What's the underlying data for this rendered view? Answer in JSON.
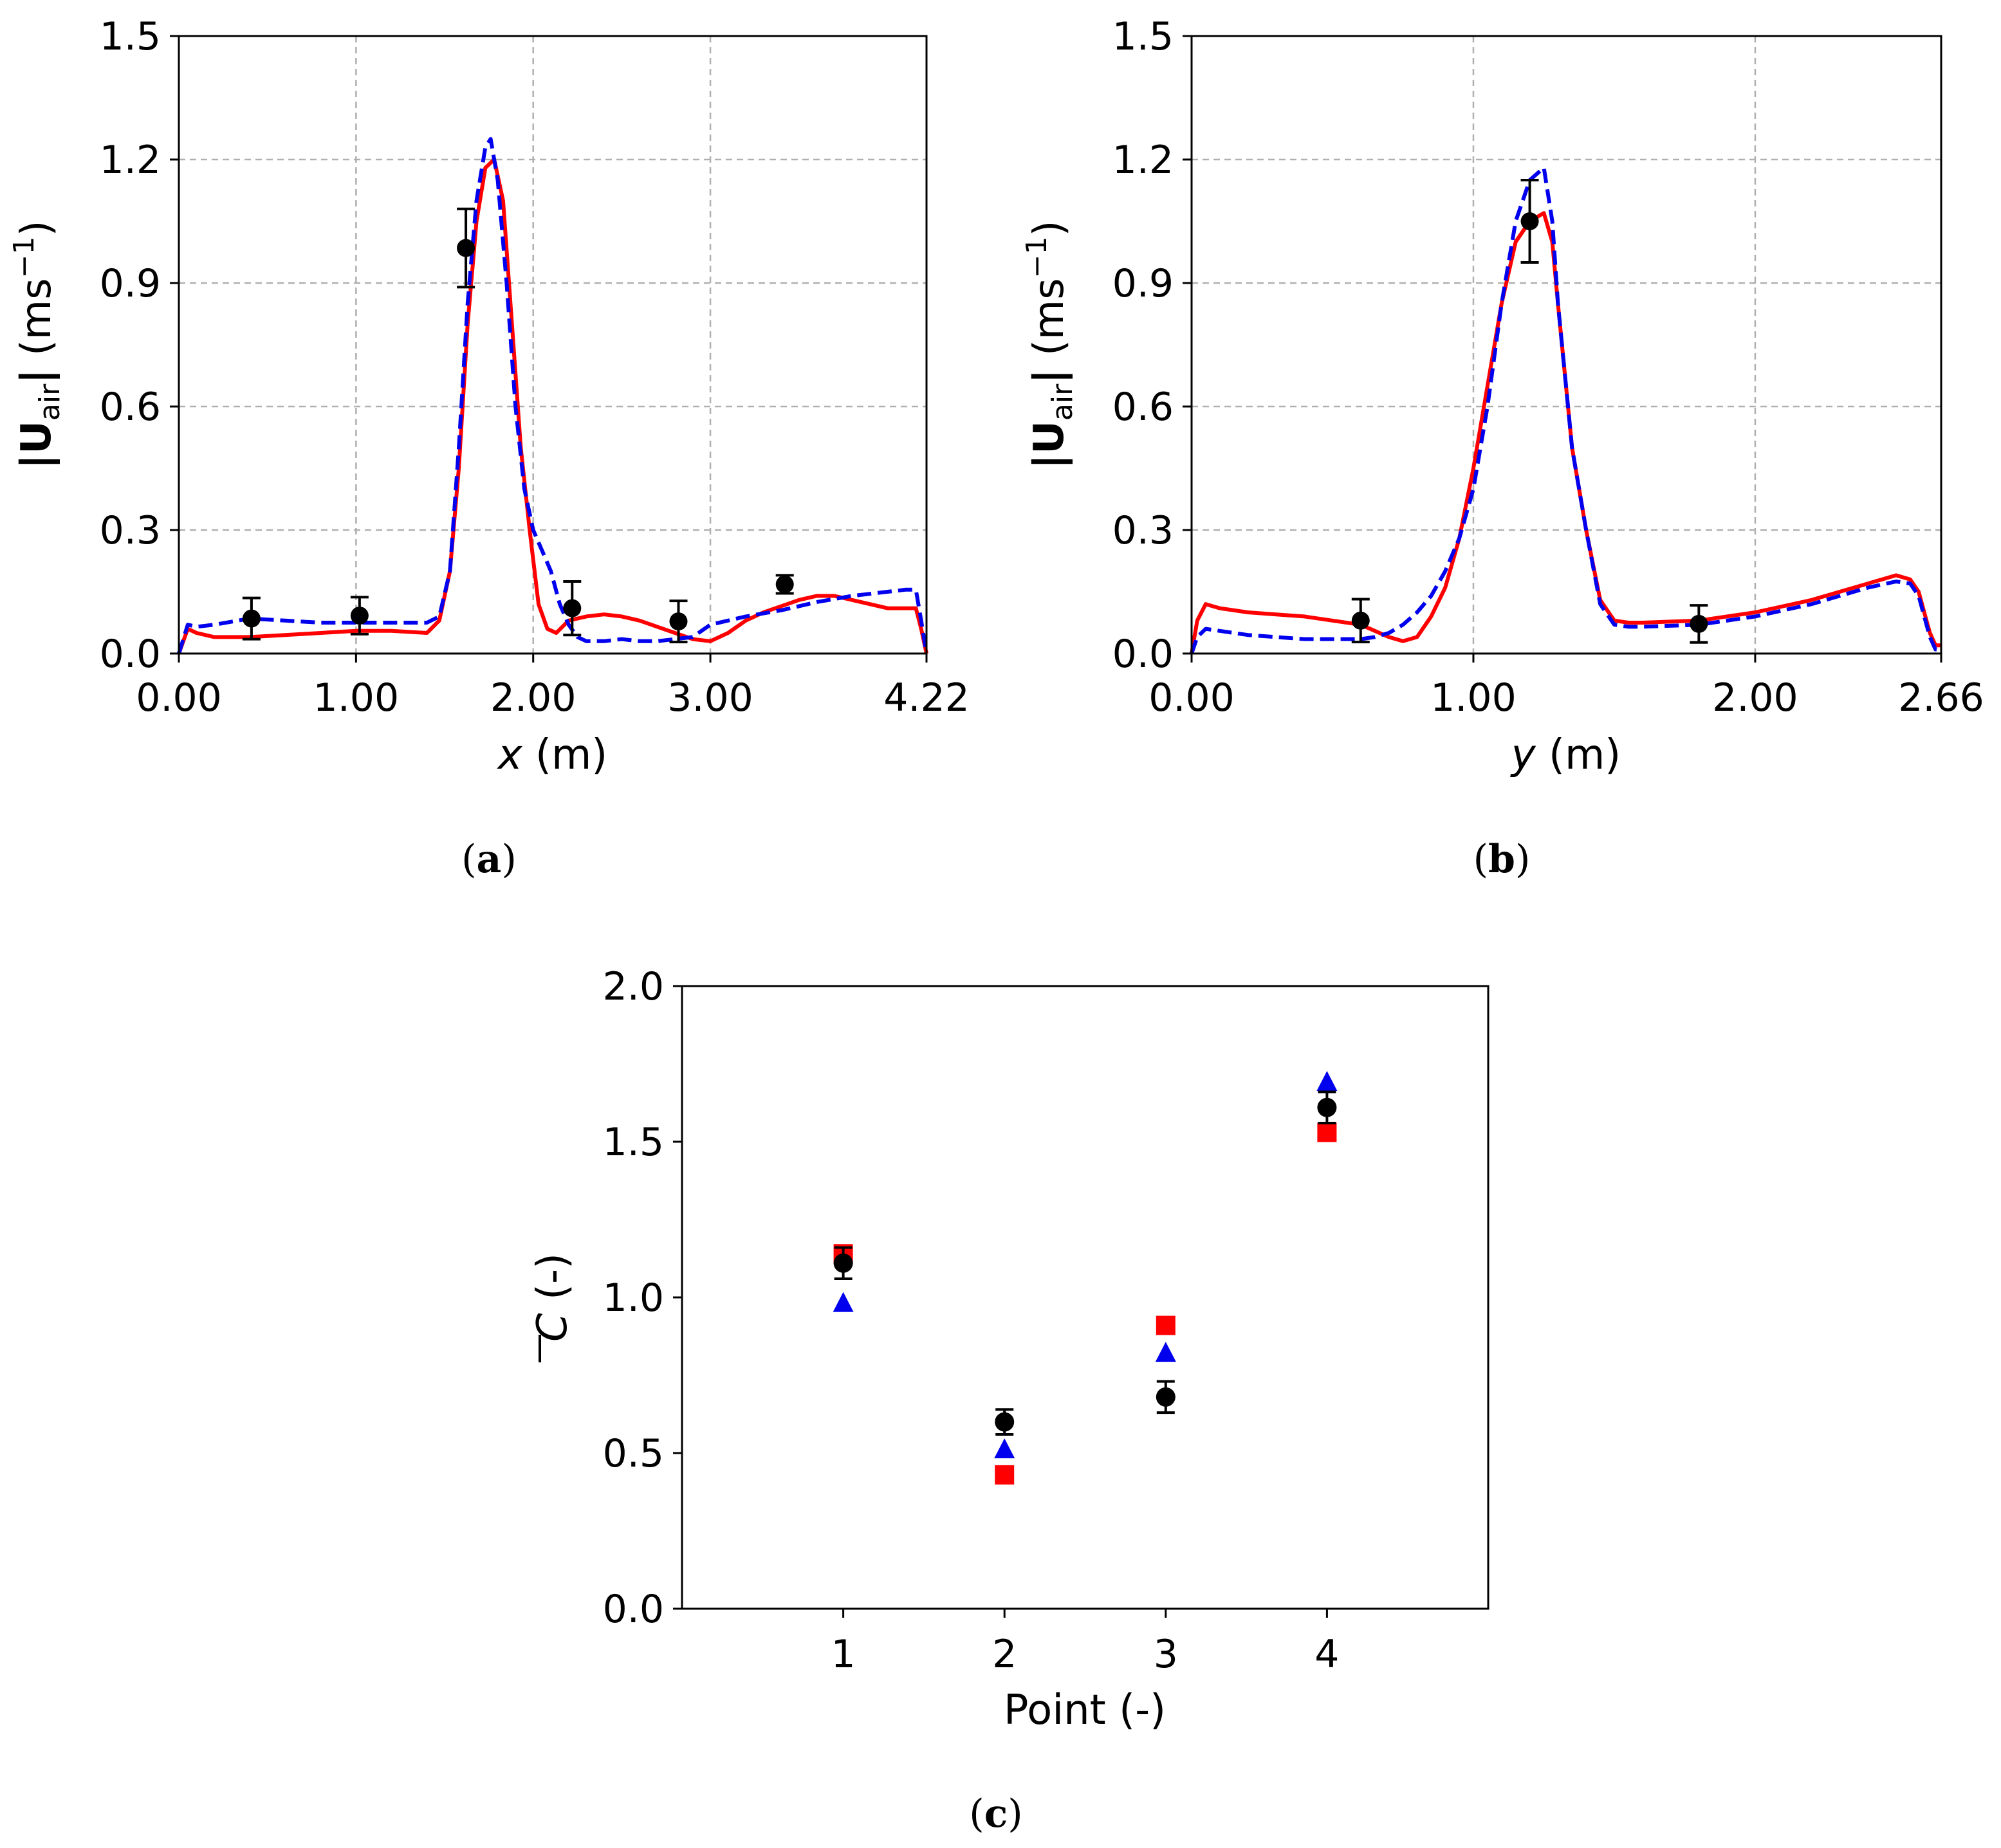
{
  "chart_data": [
    {
      "panel": "a",
      "type": "line",
      "caption": {
        "open": "(",
        "letter": "a",
        "close": ")"
      },
      "xlabel": {
        "var": "x",
        "unit": " (m)"
      },
      "ylabel": {
        "bar1": "|",
        "symbol": "U",
        "sub": "air",
        "bar2": "|",
        "unit_pre": " (ms",
        "unit_sup": "−1",
        "unit_post": ")"
      },
      "xlim": [
        0,
        4.22
      ],
      "ylim": [
        0,
        1.5
      ],
      "xticks": [
        {
          "v": 0,
          "label": "0.00"
        },
        {
          "v": 1,
          "label": "1.00"
        },
        {
          "v": 2,
          "label": "2.00"
        },
        {
          "v": 3,
          "label": "3.00"
        },
        {
          "v": 4.22,
          "label": "4.22"
        }
      ],
      "yticks": [
        {
          "v": 0,
          "label": "0.0"
        },
        {
          "v": 0.3,
          "label": "0.3"
        },
        {
          "v": 0.6,
          "label": "0.6"
        },
        {
          "v": 0.9,
          "label": "0.9"
        },
        {
          "v": 1.2,
          "label": "1.2"
        },
        {
          "v": 1.5,
          "label": "1.5"
        }
      ],
      "grid": true,
      "series": [
        {
          "name": "simulation-solid",
          "style": "solid",
          "color": "#ff0000",
          "x": [
            0,
            0.05,
            0.1,
            0.2,
            0.4,
            0.6,
            0.8,
            1.0,
            1.2,
            1.4,
            1.47,
            1.53,
            1.58,
            1.63,
            1.68,
            1.73,
            1.78,
            1.83,
            1.88,
            1.93,
            1.98,
            2.03,
            2.08,
            2.13,
            2.2,
            2.3,
            2.4,
            2.5,
            2.6,
            2.7,
            2.8,
            2.9,
            3.0,
            3.1,
            3.2,
            3.3,
            3.4,
            3.5,
            3.6,
            3.7,
            3.8,
            3.9,
            4.0,
            4.1,
            4.16,
            4.19,
            4.22
          ],
          "y": [
            0,
            0.06,
            0.05,
            0.04,
            0.04,
            0.045,
            0.05,
            0.055,
            0.055,
            0.05,
            0.08,
            0.2,
            0.45,
            0.8,
            1.05,
            1.18,
            1.2,
            1.1,
            0.8,
            0.5,
            0.3,
            0.12,
            0.06,
            0.05,
            0.08,
            0.09,
            0.095,
            0.09,
            0.08,
            0.065,
            0.05,
            0.035,
            0.03,
            0.05,
            0.08,
            0.1,
            0.115,
            0.13,
            0.14,
            0.14,
            0.13,
            0.12,
            0.11,
            0.11,
            0.11,
            0.06,
            0
          ]
        },
        {
          "name": "simulation-dashed",
          "style": "dashed",
          "color": "#0000ee",
          "x": [
            0,
            0.05,
            0.1,
            0.2,
            0.4,
            0.6,
            0.8,
            1.0,
            1.2,
            1.4,
            1.47,
            1.53,
            1.58,
            1.63,
            1.68,
            1.73,
            1.76,
            1.8,
            1.85,
            1.9,
            1.95,
            2.0,
            2.05,
            2.1,
            2.15,
            2.2,
            2.25,
            2.3,
            2.4,
            2.5,
            2.6,
            2.7,
            2.8,
            2.9,
            3.0,
            3.2,
            3.4,
            3.6,
            3.8,
            4.0,
            4.1,
            4.16,
            4.19,
            4.22
          ],
          "y": [
            0,
            0.07,
            0.065,
            0.07,
            0.085,
            0.08,
            0.075,
            0.075,
            0.075,
            0.075,
            0.09,
            0.2,
            0.5,
            0.85,
            1.1,
            1.23,
            1.25,
            1.15,
            0.9,
            0.6,
            0.4,
            0.3,
            0.25,
            0.2,
            0.12,
            0.07,
            0.04,
            0.03,
            0.03,
            0.035,
            0.03,
            0.03,
            0.035,
            0.04,
            0.07,
            0.09,
            0.105,
            0.125,
            0.14,
            0.15,
            0.155,
            0.155,
            0.08,
            0
          ]
        }
      ],
      "markers": [
        {
          "x": 0.41,
          "y": 0.085,
          "err": 0.05
        },
        {
          "x": 1.02,
          "y": 0.092,
          "err": 0.045
        },
        {
          "x": 1.62,
          "y": 0.985,
          "err": 0.095
        },
        {
          "x": 2.22,
          "y": 0.11,
          "err": 0.065
        },
        {
          "x": 2.82,
          "y": 0.078,
          "err": 0.05
        },
        {
          "x": 3.42,
          "y": 0.168,
          "err": 0.022
        }
      ]
    },
    {
      "panel": "b",
      "type": "line",
      "caption": {
        "open": "(",
        "letter": "b",
        "close": ")"
      },
      "xlabel": {
        "var": "y",
        "unit": " (m)"
      },
      "ylabel": {
        "bar1": "|",
        "symbol": "U",
        "sub": "air",
        "bar2": "|",
        "unit_pre": " (ms",
        "unit_sup": "−1",
        "unit_post": ")"
      },
      "xlim": [
        0,
        2.66
      ],
      "ylim": [
        0,
        1.5
      ],
      "xticks": [
        {
          "v": 0,
          "label": "0.00"
        },
        {
          "v": 1,
          "label": "1.00"
        },
        {
          "v": 2,
          "label": "2.00"
        },
        {
          "v": 2.66,
          "label": "2.66"
        }
      ],
      "yticks": [
        {
          "v": 0,
          "label": "0.0"
        },
        {
          "v": 0.3,
          "label": "0.3"
        },
        {
          "v": 0.6,
          "label": "0.6"
        },
        {
          "v": 0.9,
          "label": "0.9"
        },
        {
          "v": 1.2,
          "label": "1.2"
        },
        {
          "v": 1.5,
          "label": "1.5"
        }
      ],
      "grid": true,
      "series": [
        {
          "name": "simulation-solid",
          "style": "solid",
          "color": "#ff0000",
          "x": [
            0,
            0.02,
            0.05,
            0.1,
            0.2,
            0.3,
            0.4,
            0.5,
            0.6,
            0.65,
            0.7,
            0.75,
            0.8,
            0.85,
            0.9,
            0.95,
            1.0,
            1.05,
            1.1,
            1.15,
            1.2,
            1.25,
            1.28,
            1.3,
            1.35,
            1.4,
            1.45,
            1.5,
            1.55,
            1.6,
            1.8,
            2.0,
            2.2,
            2.4,
            2.5,
            2.55,
            2.58,
            2.6,
            2.62,
            2.64,
            2.66
          ],
          "y": [
            0,
            0.08,
            0.12,
            0.11,
            0.1,
            0.095,
            0.09,
            0.08,
            0.07,
            0.055,
            0.04,
            0.03,
            0.04,
            0.09,
            0.16,
            0.28,
            0.45,
            0.65,
            0.85,
            1.0,
            1.05,
            1.07,
            1.0,
            0.85,
            0.5,
            0.3,
            0.13,
            0.08,
            0.075,
            0.075,
            0.08,
            0.1,
            0.13,
            0.17,
            0.19,
            0.18,
            0.15,
            0.1,
            0.05,
            0.02,
            0.02
          ]
        },
        {
          "name": "simulation-dashed",
          "style": "dashed",
          "color": "#0000ee",
          "x": [
            0,
            0.02,
            0.05,
            0.1,
            0.2,
            0.3,
            0.4,
            0.5,
            0.6,
            0.65,
            0.7,
            0.75,
            0.8,
            0.85,
            0.9,
            0.95,
            1.0,
            1.05,
            1.1,
            1.15,
            1.2,
            1.25,
            1.28,
            1.3,
            1.35,
            1.4,
            1.45,
            1.5,
            1.55,
            1.6,
            1.8,
            2.0,
            2.2,
            2.4,
            2.5,
            2.55,
            2.58,
            2.6,
            2.62,
            2.64,
            2.66
          ],
          "y": [
            0,
            0.04,
            0.06,
            0.055,
            0.045,
            0.04,
            0.035,
            0.035,
            0.035,
            0.04,
            0.05,
            0.07,
            0.1,
            0.14,
            0.2,
            0.28,
            0.4,
            0.6,
            0.85,
            1.05,
            1.15,
            1.18,
            1.05,
            0.85,
            0.5,
            0.3,
            0.12,
            0.07,
            0.065,
            0.065,
            0.07,
            0.09,
            0.12,
            0.16,
            0.175,
            0.17,
            0.14,
            0.09,
            0.04,
            0.01,
            0.01
          ]
        }
      ],
      "markers": [
        {
          "x": 0.6,
          "y": 0.08,
          "err": 0.052
        },
        {
          "x": 1.2,
          "y": 1.05,
          "err": 0.1
        },
        {
          "x": 1.8,
          "y": 0.072,
          "err": 0.045
        }
      ]
    },
    {
      "panel": "c",
      "type": "scatter",
      "caption": {
        "open": "(",
        "letter": "c",
        "close": ")"
      },
      "xlabel": {
        "text": "Point (-)"
      },
      "ylabel": {
        "symbol": "C",
        "unit": " (-)"
      },
      "xlim": [
        0,
        5
      ],
      "ylim": [
        0,
        2.0
      ],
      "xticks": [
        {
          "v": 1,
          "label": "1"
        },
        {
          "v": 2,
          "label": "2"
        },
        {
          "v": 3,
          "label": "3"
        },
        {
          "v": 4,
          "label": "4"
        }
      ],
      "yticks": [
        {
          "v": 0,
          "label": "0.0"
        },
        {
          "v": 0.5,
          "label": "0.5"
        },
        {
          "v": 1.0,
          "label": "1.0"
        },
        {
          "v": 1.5,
          "label": "1.5"
        },
        {
          "v": 2.0,
          "label": "2.0"
        }
      ],
      "grid": false,
      "series": [
        {
          "name": "measured",
          "marker": "circle",
          "color": "#000000",
          "x": [
            1,
            2,
            3,
            4
          ],
          "y": [
            1.11,
            0.6,
            0.68,
            1.61
          ],
          "err": [
            0.05,
            0.04,
            0.05,
            0.05
          ]
        },
        {
          "name": "model-blue",
          "marker": "triangle",
          "color": "#0000ee",
          "x": [
            1,
            2,
            3,
            4
          ],
          "y": [
            0.98,
            0.51,
            0.82,
            1.69
          ]
        },
        {
          "name": "model-red",
          "marker": "square",
          "color": "#ff0000",
          "x": [
            1,
            2,
            3,
            4
          ],
          "y": [
            1.14,
            0.43,
            0.91,
            1.53
          ]
        }
      ]
    }
  ]
}
